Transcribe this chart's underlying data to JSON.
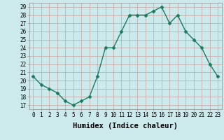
{
  "xlabel": "Humidex (Indice chaleur)",
  "x": [
    0,
    1,
    2,
    3,
    4,
    5,
    6,
    7,
    8,
    9,
    10,
    11,
    12,
    13,
    14,
    15,
    16,
    17,
    18,
    19,
    20,
    21,
    22,
    23
  ],
  "y": [
    20.5,
    19.5,
    19.0,
    18.5,
    17.5,
    17.0,
    17.5,
    18.0,
    20.5,
    24.0,
    24.0,
    26.0,
    28.0,
    28.0,
    28.0,
    28.5,
    29.0,
    27.0,
    28.0,
    26.0,
    25.0,
    24.0,
    22.0,
    20.5
  ],
  "line_color": "#1a7a5e",
  "marker": "D",
  "marker_size": 2.5,
  "bg_color": "#cce9ec",
  "grid_color": "#c8a0a0",
  "spine_color": "#999999",
  "ylim_min": 16.5,
  "ylim_max": 29.5,
  "xlim_min": -0.5,
  "xlim_max": 23.5,
  "yticks": [
    17,
    18,
    19,
    20,
    21,
    22,
    23,
    24,
    25,
    26,
    27,
    28,
    29
  ],
  "xticks": [
    0,
    1,
    2,
    3,
    4,
    5,
    6,
    7,
    8,
    9,
    10,
    11,
    12,
    13,
    14,
    15,
    16,
    17,
    18,
    19,
    20,
    21,
    22,
    23
  ],
  "tick_label_fontsize": 5.5,
  "xlabel_fontsize": 7.5,
  "linewidth": 1.0
}
